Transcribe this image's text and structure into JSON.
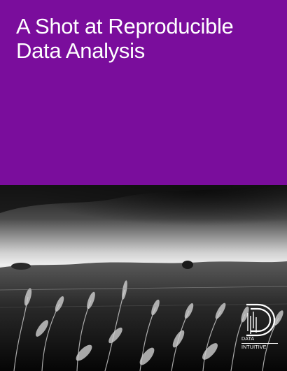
{
  "cover": {
    "title_line1": "A Shot at Reproducible",
    "title_line2": "Data Analysis",
    "band_color": "#7a0d9c",
    "photo_description_icon": "wheat-field-photo",
    "logo": {
      "icon": "data-intuitive-logo-icon",
      "line1": "DATA",
      "line2": "INTUITIVE"
    }
  }
}
